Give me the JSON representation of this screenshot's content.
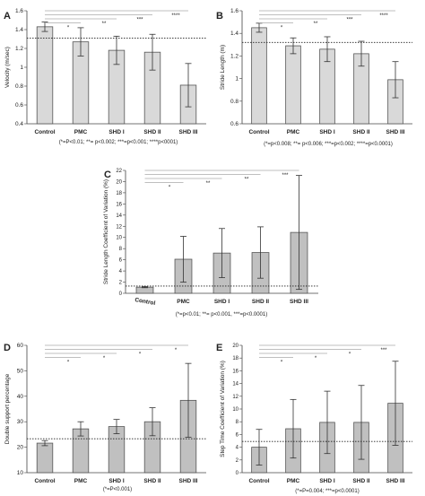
{
  "figure": {
    "panels": [
      {
        "letter": "A",
        "footnote": "(*=P<0.01; **= p<0.002; ***=p<0.001; ****p<0001)"
      },
      {
        "letter": "B",
        "footnote": "(*=p<0.008; **= p<0.006; ***=p<0.002; ****=p<0.0001)"
      },
      {
        "letter": "C",
        "footnote": "(*=p<0.01; **= p<0.001, ***=p<0.0001)"
      },
      {
        "letter": "D",
        "footnote": "(*=P<0.001)"
      },
      {
        "letter": "E",
        "footnote": "(*=P=0.004; ***=p<0.0001)"
      }
    ]
  },
  "chart_data": [
    {
      "type": "bar",
      "title": "",
      "ylabel": "Velocity (m/sec)",
      "xlabel": "",
      "categories": [
        "Control",
        "PMC",
        "SHD I",
        "SHD II",
        "SHD III"
      ],
      "values": [
        1.43,
        1.27,
        1.18,
        1.16,
        0.81
      ],
      "errors": [
        0.05,
        0.15,
        0.15,
        0.19,
        0.23
      ],
      "ylim": [
        0.4,
        1.6
      ],
      "yticks": [
        "0.4",
        "0.6",
        "0.8",
        "1",
        "1.2",
        "1.4",
        "1.6"
      ],
      "reference_line": 1.31,
      "bar_color": "#d9d9d9",
      "significance": [
        {
          "to": "PMC",
          "mark": "*"
        },
        {
          "to": "SHD I",
          "mark": "**"
        },
        {
          "to": "SHD II",
          "mark": "***"
        },
        {
          "to": "SHD III",
          "mark": "****"
        }
      ]
    },
    {
      "type": "bar",
      "title": "",
      "ylabel": "Stride Length (m)",
      "xlabel": "",
      "categories": [
        "Control",
        "PMC",
        "SHD I",
        "SHD II",
        "SHD III"
      ],
      "values": [
        1.45,
        1.29,
        1.26,
        1.22,
        0.99
      ],
      "errors": [
        0.04,
        0.07,
        0.11,
        0.11,
        0.16
      ],
      "ylim": [
        0.6,
        1.6
      ],
      "yticks": [
        "0.6",
        "0.8",
        "1",
        "1.2",
        "1.4",
        "1.6"
      ],
      "reference_line": 1.32,
      "bar_color": "#d9d9d9",
      "significance": [
        {
          "to": "PMC",
          "mark": "*"
        },
        {
          "to": "SHD I",
          "mark": "**"
        },
        {
          "to": "SHD II",
          "mark": "***"
        },
        {
          "to": "SHD III",
          "mark": "****"
        }
      ]
    },
    {
      "type": "bar",
      "title": "",
      "ylabel": "Stride Length Coefficient of Variation (%)",
      "xlabel": "",
      "categories": [
        "Control",
        "PMC",
        "SHD I",
        "SHD II",
        "SHD III"
      ],
      "values": [
        1.1,
        6.1,
        7.2,
        7.3,
        10.9
      ],
      "errors": [
        0.1,
        4.1,
        4.4,
        4.6,
        10.2
      ],
      "ylim": [
        0,
        22
      ],
      "yticks": [
        "0",
        "2",
        "4",
        "6",
        "8",
        "10",
        "12",
        "14",
        "16",
        "18",
        "20",
        "22"
      ],
      "reference_line": 1.3,
      "bar_color": "#c0c0c0",
      "significance": [
        {
          "to": "PMC",
          "mark": "*"
        },
        {
          "to": "SHD I",
          "mark": "**"
        },
        {
          "to": "SHD II",
          "mark": "**"
        },
        {
          "to": "SHD III",
          "mark": "***"
        }
      ]
    },
    {
      "type": "bar",
      "title": "",
      "ylabel": "Double support percentage",
      "xlabel": "",
      "categories": [
        "Control",
        "PMC",
        "SHD I",
        "SHD II",
        "SHD III"
      ],
      "values": [
        21.6,
        27.2,
        28.1,
        30.0,
        38.4
      ],
      "errors": [
        1.0,
        2.8,
        2.8,
        5.5,
        14.5
      ],
      "ylim": [
        10,
        60
      ],
      "yticks": [
        "10",
        "20",
        "30",
        "40",
        "50",
        "60"
      ],
      "reference_line": 23.3,
      "bar_color": "#c0c0c0",
      "significance": [
        {
          "to": "PMC",
          "mark": "*"
        },
        {
          "to": "SHD I",
          "mark": "*"
        },
        {
          "to": "SHD II",
          "mark": "*"
        },
        {
          "to": "SHD III",
          "mark": "*"
        }
      ]
    },
    {
      "type": "bar",
      "title": "",
      "ylabel": "Step Time Coefficient of Variation (%)",
      "xlabel": "",
      "categories": [
        "Control",
        "PMC",
        "SHD I",
        "SHD II",
        "SHD III"
      ],
      "values": [
        4.0,
        6.9,
        7.9,
        7.9,
        10.9
      ],
      "errors": [
        2.8,
        4.6,
        4.9,
        5.8,
        6.6
      ],
      "ylim": [
        0,
        20
      ],
      "yticks": [
        "0",
        "2",
        "4",
        "6",
        "8",
        "10",
        "12",
        "14",
        "16",
        "18",
        "20"
      ],
      "reference_line": 4.9,
      "bar_color": "#c0c0c0",
      "significance": [
        {
          "to": "PMC",
          "mark": "*"
        },
        {
          "to": "SHD I",
          "mark": "*"
        },
        {
          "to": "SHD II",
          "mark": "*"
        },
        {
          "to": "SHD III",
          "mark": "***"
        }
      ]
    }
  ]
}
